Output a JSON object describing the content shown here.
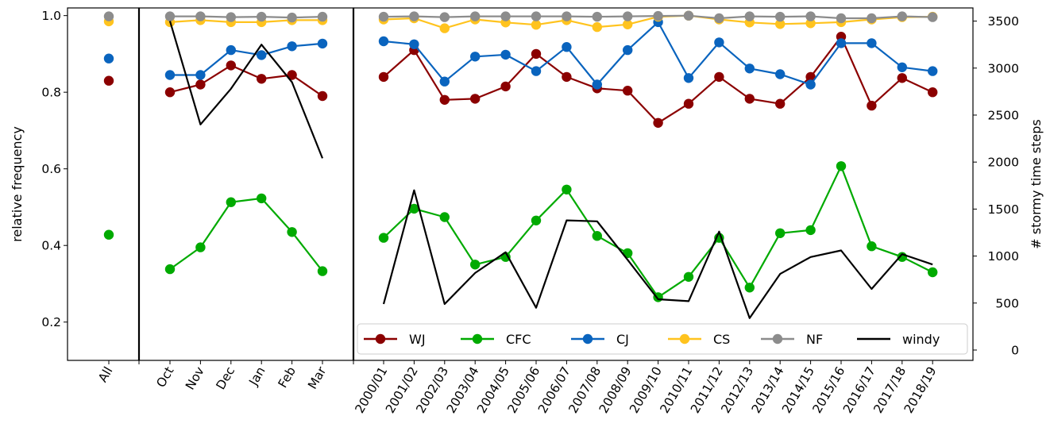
{
  "chart_data": {
    "type": "line",
    "ylabel_left": "relative frequency",
    "ylabel_right": "# stormy time steps",
    "yticks_left": [
      "0.2",
      "0.4",
      "0.6",
      "0.8",
      "1.0"
    ],
    "yticks_right": [
      "0",
      "500",
      "1000",
      "1500",
      "2000",
      "2500",
      "3000",
      "3500"
    ],
    "ylim_left": [
      0.1,
      1.02
    ],
    "ylim_right": [
      -110,
      3640
    ],
    "grid": false,
    "legend_position": "bottom-right",
    "panels": [
      {
        "categories": [
          "All"
        ]
      },
      {
        "categories": [
          "Oct",
          "Nov",
          "Dec",
          "Jan",
          "Feb",
          "Mar"
        ]
      },
      {
        "categories": [
          "2000/01",
          "2001/02",
          "2002/03",
          "2003/04",
          "2004/05",
          "2005/06",
          "2006/07",
          "2007/08",
          "2008/09",
          "2009/10",
          "2010/11",
          "2011/12",
          "2012/13",
          "2013/14",
          "2014/15",
          "2015/16",
          "2016/17",
          "2017/18",
          "2018/19"
        ]
      }
    ],
    "series": [
      {
        "name": "WJ",
        "color": "#8b0000",
        "marker": true,
        "axis": "left",
        "values": [
          [
            0.83
          ],
          [
            0.8,
            0.82,
            0.87,
            0.835,
            0.845,
            0.79
          ],
          [
            0.84,
            0.91,
            0.78,
            0.783,
            0.815,
            0.9,
            0.84,
            0.81,
            0.804,
            0.72,
            0.77,
            0.84,
            0.783,
            0.77,
            0.84,
            0.945,
            0.765,
            0.837,
            0.8
          ]
        ]
      },
      {
        "name": "CFC",
        "color": "#00aa00",
        "marker": true,
        "axis": "left",
        "values": [
          [
            0.428
          ],
          [
            0.338,
            0.395,
            0.513,
            0.523,
            0.435,
            0.333
          ],
          [
            0.42,
            0.496,
            0.474,
            0.35,
            0.37,
            0.465,
            0.546,
            0.425,
            0.38,
            0.265,
            0.318,
            0.42,
            0.29,
            0.432,
            0.44,
            0.607,
            0.398,
            0.37,
            0.33
          ]
        ]
      },
      {
        "name": "CJ",
        "color": "#0a64be",
        "marker": true,
        "axis": "left",
        "values": [
          [
            0.888
          ],
          [
            0.845,
            0.845,
            0.91,
            0.897,
            0.92,
            0.927
          ],
          [
            0.933,
            0.925,
            0.828,
            0.893,
            0.898,
            0.855,
            0.918,
            0.82,
            0.91,
            0.983,
            0.837,
            0.93,
            0.862,
            0.847,
            0.82,
            0.928,
            0.928,
            0.865,
            0.855
          ]
        ]
      },
      {
        "name": "CS",
        "color": "#ffc31e",
        "marker": true,
        "axis": "left",
        "values": [
          [
            0.985
          ],
          [
            0.983,
            0.988,
            0.983,
            0.983,
            0.988,
            0.988
          ],
          [
            0.99,
            0.993,
            0.967,
            0.99,
            0.982,
            0.976,
            0.988,
            0.97,
            0.977,
            0.997,
            1.0,
            0.99,
            0.982,
            0.978,
            0.98,
            0.983,
            0.99,
            0.996,
            0.997
          ]
        ]
      },
      {
        "name": "NF",
        "color": "#8c8c8c",
        "marker": true,
        "axis": "left",
        "values": [
          [
            0.998
          ],
          [
            0.998,
            0.998,
            0.996,
            0.997,
            0.995,
            0.997
          ],
          [
            0.997,
            0.998,
            0.996,
            0.998,
            0.998,
            0.998,
            0.998,
            0.997,
            0.998,
            0.999,
            1.0,
            0.993,
            0.998,
            0.997,
            0.998,
            0.993,
            0.993,
            0.998,
            0.996
          ]
        ]
      },
      {
        "name": "windy",
        "color": "#000000",
        "marker": false,
        "axis": "right",
        "values": [
          [],
          [
            3500,
            2400,
            2780,
            3250,
            2850,
            2040
          ],
          [
            490,
            1700,
            490,
            820,
            1040,
            450,
            1380,
            1370,
            960,
            540,
            520,
            1260,
            340,
            810,
            990,
            1060,
            650,
            1020,
            910
          ]
        ]
      }
    ]
  }
}
